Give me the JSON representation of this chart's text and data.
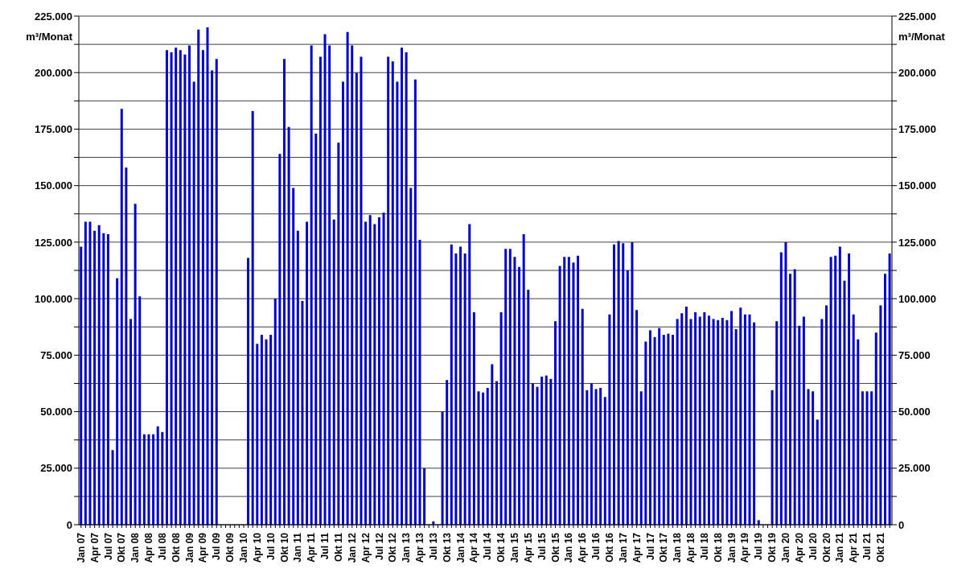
{
  "chart_data": {
    "type": "bar",
    "ylabel": "m³/Monat",
    "y2label": "m³/Monat",
    "color": "#0000cc",
    "grid": "y",
    "categories": [
      "Jan 07",
      null,
      null,
      "Apr 07",
      null,
      null,
      "Jul 07",
      null,
      null,
      "Okt 07",
      null,
      null,
      "Jan 08",
      null,
      null,
      "Apr 08",
      null,
      null,
      "Jul 08",
      null,
      null,
      "Okt 08",
      null,
      null,
      "Jan 09",
      null,
      null,
      "Apr 09",
      null,
      null,
      "Jul 09",
      null,
      null,
      "Okt 09",
      null,
      null,
      "Jan 10",
      null,
      null,
      "Apr 10",
      null,
      null,
      "Jul 10",
      null,
      null,
      "Okt 10",
      null,
      null,
      "Jan 11",
      null,
      null,
      "Apr 11",
      null,
      null,
      "Jul 11",
      null,
      null,
      "Okt 11",
      null,
      null,
      "Jan 12",
      null,
      null,
      "Apr 12",
      null,
      null,
      "Jul 12",
      null,
      null,
      "Okt 12",
      null,
      null,
      "Jan 13",
      null,
      null,
      "Apr 13",
      null,
      null,
      "Jul 13",
      null,
      null,
      "Okt 13",
      null,
      null,
      "Jan 14",
      null,
      null,
      "Apr 14",
      null,
      null,
      "Jul 14",
      null,
      null,
      "Okt 14",
      null,
      null,
      "Jan 15",
      null,
      null,
      "Apr 15",
      null,
      null,
      "Jul 15",
      null,
      null,
      "Okt 15",
      null,
      null,
      "Jan 16",
      null,
      null,
      "Apr 16",
      null,
      null,
      "Jul 16",
      null,
      null,
      "Okt 16",
      null,
      null,
      "Jan 17",
      null,
      null,
      "Apr 17",
      null,
      null,
      "Jul 17",
      null,
      null,
      "Okt 17",
      null,
      null,
      "Jan 18",
      null,
      null,
      "Apr 18",
      null,
      null,
      "Jul 18",
      null,
      null,
      "Okt 18",
      null,
      null,
      "Jan 19",
      null,
      null,
      "Apr 19",
      null,
      null,
      "Jul 19",
      null,
      null,
      "Okt 19",
      null,
      null,
      "Jan 20",
      null,
      null,
      "Apr 20",
      null,
      null,
      "Jul 20",
      null,
      null,
      "Okt 20",
      null,
      null,
      "Jan 21",
      null,
      null,
      "Apr 21",
      null,
      null,
      "Jul 21",
      null,
      null,
      "Okt 21",
      null,
      null
    ],
    "values": [
      123000,
      134000,
      134000,
      130000,
      132500,
      129000,
      128500,
      33000,
      109000,
      184000,
      158000,
      91000,
      142000,
      101000,
      40000,
      40000,
      40000,
      43500,
      41000,
      210000,
      209000,
      211000,
      210000,
      208000,
      212000,
      196000,
      219000,
      210000,
      220000,
      201000,
      206000,
      0,
      0,
      0,
      0,
      0,
      0,
      118000,
      183000,
      80000,
      84000,
      82000,
      84000,
      100000,
      164000,
      206000,
      176000,
      149000,
      130000,
      99000,
      134000,
      212000,
      173000,
      207000,
      217000,
      212000,
      135000,
      169000,
      196000,
      218000,
      212000,
      200000,
      207000,
      134000,
      137000,
      133000,
      136000,
      138000,
      207000,
      205000,
      196000,
      211000,
      209000,
      149000,
      197000,
      126000,
      25000,
      0,
      1500,
      0,
      50000,
      64000,
      124000,
      120000,
      123000,
      120000,
      133000,
      94000,
      59000,
      58500,
      60500,
      71000,
      63500,
      94000,
      122000,
      122000,
      118500,
      114000,
      128500,
      104000,
      62500,
      61000,
      65500,
      66000,
      64500,
      90000,
      114500,
      118500,
      118500,
      116000,
      119000,
      95500,
      59500,
      62500,
      60000,
      60500,
      56500,
      93000,
      124000,
      125500,
      124500,
      112500,
      125000,
      95000,
      59000,
      81000,
      86000,
      83000,
      87000,
      84000,
      84500,
      84000,
      91000,
      93500,
      96500,
      91000,
      94000,
      92000,
      94000,
      92500,
      91000,
      90500,
      91500,
      90500,
      94500,
      86500,
      96000,
      93000,
      93000,
      89500,
      2000,
      0,
      0,
      59500,
      90000,
      120500,
      125000,
      111000,
      113000,
      88000,
      92000,
      60000,
      59000,
      46500,
      91000,
      97000,
      118500,
      119000,
      123000,
      108000,
      120000,
      93000,
      82000,
      59000,
      59000,
      59000,
      85000,
      97000,
      111000,
      120000
    ],
    "ylim": [
      0,
      225000
    ],
    "yticks": [
      0,
      {
        "value": 12500,
        "label": null
      },
      {
        "value": 25000,
        "label": "25.000"
      },
      {
        "value": 37500,
        "label": null
      },
      {
        "value": 50000,
        "label": "50.000"
      },
      {
        "value": 62500,
        "label": null
      },
      {
        "value": 75000,
        "label": "75.000"
      },
      {
        "value": 87500,
        "label": null
      },
      {
        "value": 100000,
        "label": "100.000"
      },
      {
        "value": 112500,
        "label": null
      },
      {
        "value": 125000,
        "label": "125.000"
      },
      {
        "value": 137500,
        "label": null
      },
      {
        "value": 150000,
        "label": "150.000"
      },
      {
        "value": 162500,
        "label": null
      },
      {
        "value": 175000,
        "label": "175.000"
      },
      {
        "value": 187500,
        "label": null
      },
      {
        "value": 200000,
        "label": "200.000"
      },
      {
        "value": 212500,
        "label": null
      },
      {
        "value": 225000,
        "label": "225.000"
      }
    ],
    "y2lim": [
      0,
      225000
    ],
    "y2ticks": [
      0,
      {
        "value": 12500,
        "label": null
      },
      {
        "value": 25000,
        "label": "25.000"
      },
      {
        "value": 37500,
        "label": null
      },
      {
        "value": 50000,
        "label": "50.000"
      },
      {
        "value": 62500,
        "label": null
      },
      {
        "value": 75000,
        "label": "75.000"
      },
      {
        "value": 87500,
        "label": null
      },
      {
        "value": 100000,
        "label": "100.000"
      },
      {
        "value": 112500,
        "label": null
      },
      {
        "value": 125000,
        "label": "125.000"
      },
      {
        "value": 137500,
        "label": null
      },
      {
        "value": 150000,
        "label": "150.000"
      },
      {
        "value": 162500,
        "label": null
      },
      {
        "value": 175000,
        "label": "175.000"
      },
      {
        "value": 187500,
        "label": null
      },
      {
        "value": 200000,
        "label": "200.000"
      },
      {
        "value": 212500,
        "label": null
      },
      {
        "value": 225000,
        "label": "225.000"
      }
    ]
  }
}
